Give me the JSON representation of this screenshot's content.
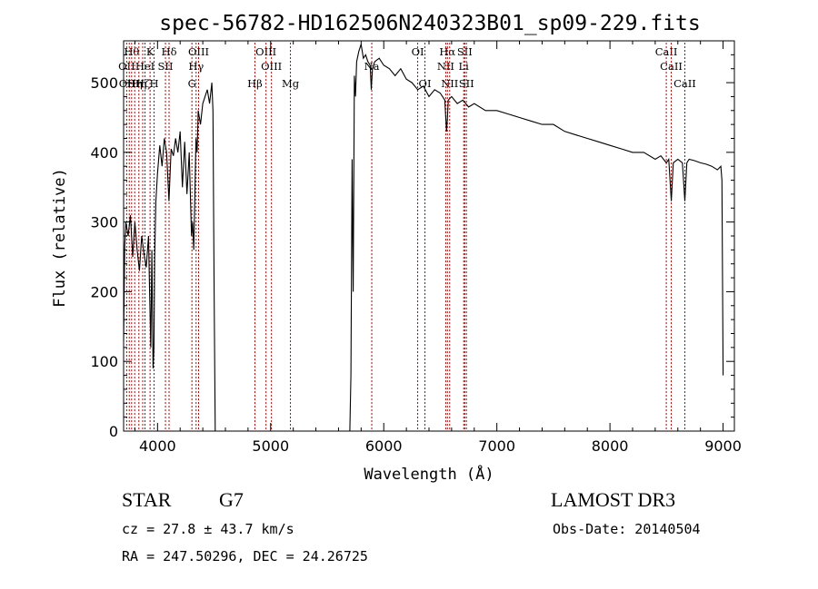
{
  "chart_data": {
    "type": "line",
    "title": "spec-56782-HD162506N240323B01_sp09-229.fits",
    "xlabel": "Wavelength (Å)",
    "ylabel": "Flux (relative)",
    "xlim": [
      3700,
      9100
    ],
    "ylim": [
      0,
      560
    ],
    "x_ticks": [
      4000,
      5000,
      6000,
      7000,
      8000,
      9000
    ],
    "y_ticks": [
      0,
      100,
      200,
      300,
      400,
      500
    ],
    "grid": false,
    "series": [
      {
        "color": "#000000",
        "segments": [
          {
            "x": [
              3700,
              3710,
              3720,
              3740,
              3760,
              3780,
              3800,
              3820,
              3840,
              3860,
              3880,
              3900,
              3920,
              3930,
              3940,
              3950,
              3960,
              3968,
              3975,
              3985,
              4000,
              4020,
              4040,
              4060,
              4080,
              4101,
              4120,
              4140,
              4160,
              4180,
              4200,
              4220,
              4240,
              4260,
              4280,
              4300,
              4310,
              4320,
              4340,
              4350,
              4360,
              4380,
              4400,
              4420,
              4440,
              4460,
              4480,
              4490,
              4500,
              4510
            ],
            "y": [
              130,
              265,
              300,
              280,
              310,
              250,
              300,
              260,
              230,
              280,
              255,
              235,
              280,
              200,
              120,
              260,
              90,
              120,
              250,
              330,
              370,
              410,
              380,
              420,
              400,
              330,
              405,
              395,
              420,
              400,
              430,
              350,
              415,
              340,
              400,
              280,
              300,
              260,
              420,
              400,
              460,
              440,
              470,
              480,
              490,
              470,
              500,
              460,
              200,
              0
            ]
          },
          {
            "x": [
              5700,
              5710,
              5720,
              5730,
              5740,
              5750,
              5760,
              5780,
              5800,
              5820,
              5840,
              5860,
              5880,
              5890,
              5900,
              5920,
              5960,
              6000,
              6050,
              6100,
              6150,
              6200,
              6250,
              6300,
              6350,
              6400,
              6450,
              6500,
              6540,
              6555,
              6563,
              6570,
              6600,
              6650,
              6700,
              6750,
              6800,
              6900,
              7000,
              7100,
              7200,
              7300,
              7400,
              7500,
              7600,
              7700,
              7800,
              7900,
              8000,
              8100,
              8200,
              8300,
              8400,
              8450,
              8498,
              8520,
              8542,
              8560,
              8600,
              8640,
              8662,
              8680,
              8700,
              8750,
              8800,
              8850,
              8900,
              8950,
              8980,
              8990,
              9000
            ],
            "y": [
              0,
              80,
              390,
              200,
              510,
              480,
              530,
              545,
              555,
              535,
              540,
              530,
              525,
              490,
              520,
              530,
              535,
              525,
              520,
              510,
              520,
              505,
              500,
              490,
              495,
              480,
              490,
              485,
              475,
              430,
              450,
              475,
              480,
              470,
              475,
              465,
              470,
              460,
              460,
              455,
              450,
              445,
              440,
              440,
              430,
              425,
              420,
              415,
              410,
              405,
              400,
              400,
              390,
              395,
              385,
              390,
              330,
              385,
              390,
              385,
              330,
              385,
              390,
              388,
              385,
              383,
              380,
              375,
              380,
              360,
              80
            ]
          }
        ]
      }
    ],
    "line_markers": [
      {
        "x": 3727,
        "label": "OII",
        "row": 2
      },
      {
        "x": 3750,
        "label": "OIII",
        "row": 3
      },
      {
        "x": 3771,
        "label": "Hθ",
        "row": 1
      },
      {
        "x": 3798,
        "label": "Hη",
        "row": 3
      },
      {
        "x": 3835,
        "label": "Hη",
        "row": 3
      },
      {
        "x": 3869,
        "label": "Hζ",
        "row": 3
      },
      {
        "x": 3889,
        "label": "HeI",
        "row": 2
      },
      {
        "x": 3934,
        "label": "K",
        "row": 1
      },
      {
        "x": 3969,
        "label": "H",
        "row": 3
      },
      {
        "x": 4070,
        "label": "SII",
        "row": 2
      },
      {
        "x": 4102,
        "label": "Hδ",
        "row": 1
      },
      {
        "x": 4304,
        "label": "G",
        "row": 3
      },
      {
        "x": 4341,
        "label": "Hγ",
        "row": 2
      },
      {
        "x": 4363,
        "label": "OIII",
        "row": 1
      },
      {
        "x": 4861,
        "label": "Hβ",
        "row": 3
      },
      {
        "x": 4959,
        "label": "OIII",
        "row": 1
      },
      {
        "x": 5007,
        "label": "OIII",
        "row": 2
      },
      {
        "x": 5175,
        "label": "Mg",
        "row": 3
      },
      {
        "x": 5894,
        "label": "Na",
        "row": 2
      },
      {
        "x": 6300,
        "label": "OI",
        "row": 1
      },
      {
        "x": 6364,
        "label": "OI",
        "row": 3
      },
      {
        "x": 6548,
        "label": "NII",
        "row": 2
      },
      {
        "x": 6563,
        "label": "Hα",
        "row": 1
      },
      {
        "x": 6583,
        "label": "NII",
        "row": 3
      },
      {
        "x": 6707,
        "label": "Li",
        "row": 2
      },
      {
        "x": 6716,
        "label": "SII",
        "row": 1
      },
      {
        "x": 6731,
        "label": "SII",
        "row": 3
      },
      {
        "x": 8498,
        "label": "CaII",
        "row": 1
      },
      {
        "x": 8542,
        "label": "CaII",
        "row": 2
      },
      {
        "x": 8662,
        "label": "CaII",
        "row": 3
      }
    ]
  },
  "info": {
    "object_class": "STAR",
    "subclass": "G7",
    "survey": "LAMOST DR3",
    "cz": "cz = 27.8 ± 43.7 km/s",
    "obs_date": "Obs-Date: 20140504",
    "coords": "RA = 247.50296, DEC =  24.26725"
  }
}
